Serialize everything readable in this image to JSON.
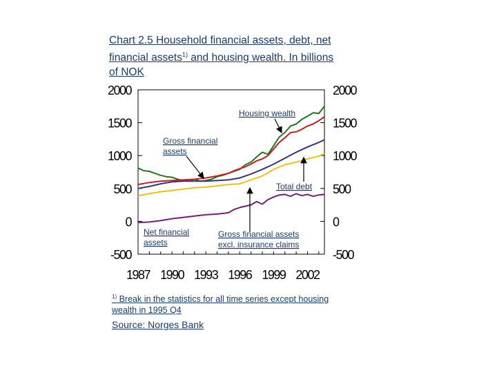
{
  "title_prefix": "Chart 2.5  Household financial assets, debt, net financial assets",
  "title_sup": "1)",
  "title_suffix": " and housing wealth. In billions of NOK",
  "footnote_sup": "1)",
  "footnote_text": " Break in the statistics for all time series except housing wealth in 1995 Q4",
  "source": "Source: Norges Bank",
  "chart_data": {
    "type": "line",
    "ylim": [
      -500,
      2000
    ],
    "xlim": [
      1987,
      2003.5
    ],
    "yticks": [
      -500,
      0,
      500,
      1000,
      1500,
      2000
    ],
    "xticks": [
      1987,
      1990,
      1993,
      1996,
      1999,
      2002
    ],
    "annotations": [
      {
        "text": "Housing wealth",
        "series": 0
      },
      {
        "text": "Gross financial assets",
        "series": 1
      },
      {
        "text": "Total debt",
        "series": 2
      },
      {
        "text": "Net financial assets",
        "series": 4
      },
      {
        "text": "Gross financial assets excl. insurance claims",
        "series": 3
      }
    ],
    "series": [
      {
        "color": "#1a7a1a",
        "x": [
          1987,
          1987.5,
          1988,
          1988.5,
          1989,
          1989.5,
          1990,
          1990.5,
          1991,
          1991.5,
          1992,
          1992.5,
          1993,
          1993.5,
          1994,
          1994.5,
          1995,
          1995.5,
          1996,
          1996.5,
          1997,
          1997.5,
          1998,
          1998.5,
          1999,
          1999.5,
          2000,
          2000.5,
          2001,
          2001.5,
          2002,
          2002.5,
          2003,
          2003.5
        ],
        "y": [
          810,
          770,
          760,
          730,
          700,
          680,
          670,
          640,
          620,
          610,
          640,
          610,
          620,
          640,
          680,
          700,
          730,
          760,
          790,
          860,
          900,
          980,
          1050,
          1020,
          1150,
          1280,
          1350,
          1450,
          1480,
          1550,
          1600,
          1650,
          1640,
          1750
        ]
      },
      {
        "color": "#d11a1a",
        "x": [
          1987,
          1988,
          1989,
          1990,
          1991,
          1992,
          1993,
          1994,
          1995,
          1995.5,
          1996,
          1996.5,
          1997,
          1997.5,
          1998,
          1998.5,
          1999,
          1999.5,
          2000,
          2000.5,
          2001,
          2001.5,
          2002,
          2002.5,
          2003,
          2003.5
        ],
        "y": [
          560,
          590,
          610,
          620,
          630,
          640,
          660,
          690,
          730,
          770,
          800,
          830,
          870,
          920,
          950,
          1000,
          1100,
          1200,
          1270,
          1350,
          1360,
          1400,
          1450,
          1480,
          1530,
          1590
        ]
      },
      {
        "color": "#303580",
        "x": [
          1987,
          1988,
          1989,
          1990,
          1991,
          1992,
          1993,
          1994,
          1995,
          1996,
          1997,
          1998,
          1999,
          2000,
          2001,
          2002,
          2003,
          2003.5
        ],
        "y": [
          500,
          530,
          570,
          600,
          610,
          610,
          610,
          620,
          630,
          660,
          720,
          790,
          870,
          960,
          1050,
          1130,
          1200,
          1240
        ]
      },
      {
        "color": "#f0c010",
        "x": [
          1987,
          1988,
          1989,
          1990,
          1991,
          1992,
          1993,
          1994,
          1995,
          1996,
          1997,
          1998,
          1999,
          2000,
          2001,
          2002,
          2003,
          2003.5
        ],
        "y": [
          390,
          420,
          450,
          470,
          490,
          510,
          520,
          540,
          560,
          570,
          630,
          690,
          790,
          860,
          900,
          950,
          990,
          1030
        ]
      },
      {
        "color": "#7a1a7a",
        "x": [
          1987,
          1988,
          1989,
          1990,
          1991,
          1992,
          1993,
          1994,
          1995,
          1995.5,
          1996,
          1997,
          1997.5,
          1998,
          1998.5,
          1999,
          1999.5,
          2000,
          2000.5,
          2001,
          2001.5,
          2002,
          2002.5,
          2003,
          2003.5
        ],
        "y": [
          -20,
          -10,
          10,
          40,
          60,
          80,
          100,
          110,
          130,
          180,
          210,
          250,
          300,
          260,
          330,
          370,
          400,
          410,
          380,
          420,
          390,
          410,
          380,
          400,
          410
        ]
      }
    ]
  }
}
